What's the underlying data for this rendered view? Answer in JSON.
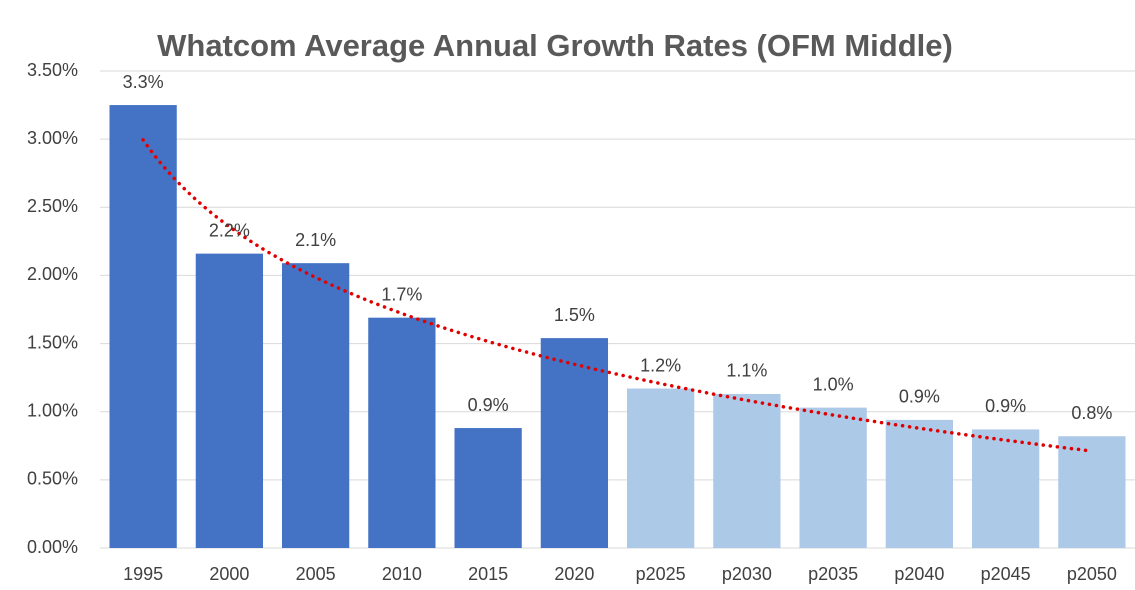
{
  "chart_data": {
    "type": "bar",
    "title": "Whatcom Average Annual Growth Rates (OFM Middle)",
    "categories": [
      "1995",
      "2000",
      "2005",
      "2010",
      "2015",
      "2020",
      "p2025",
      "p2030",
      "p2035",
      "p2040",
      "p2045",
      "p2050"
    ],
    "values": [
      3.25,
      2.16,
      2.09,
      1.69,
      0.88,
      1.54,
      1.17,
      1.13,
      1.03,
      0.94,
      0.87,
      0.82
    ],
    "value_labels": [
      "3.3%",
      "2.2%",
      "2.1%",
      "1.7%",
      "0.9%",
      "1.5%",
      "1.2%",
      "1.1%",
      "1.0%",
      "0.9%",
      "0.9%",
      "0.8%"
    ],
    "colors": [
      "#4472c4",
      "#4472c4",
      "#4472c4",
      "#4472c4",
      "#4472c4",
      "#4472c4",
      "#adc9e8",
      "#adc9e8",
      "#adc9e8",
      "#adc9e8",
      "#adc9e8",
      "#adc9e8"
    ],
    "ylim": [
      0,
      3.5
    ],
    "yticks": [
      {
        "value": 0,
        "label": "0.00%"
      },
      {
        "value": 0.5,
        "label": "0.50%"
      },
      {
        "value": 1,
        "label": "1.00%"
      },
      {
        "value": 1.5,
        "label": "1.50%"
      },
      {
        "value": 2,
        "label": "2.00%"
      },
      {
        "value": 2.5,
        "label": "2.50%"
      },
      {
        "value": 3,
        "label": "3.00%"
      },
      {
        "value": 3.5,
        "label": "3.50%"
      }
    ],
    "grid": true,
    "trendline": {
      "type": "logarithmic",
      "color": "#e00000"
    }
  }
}
